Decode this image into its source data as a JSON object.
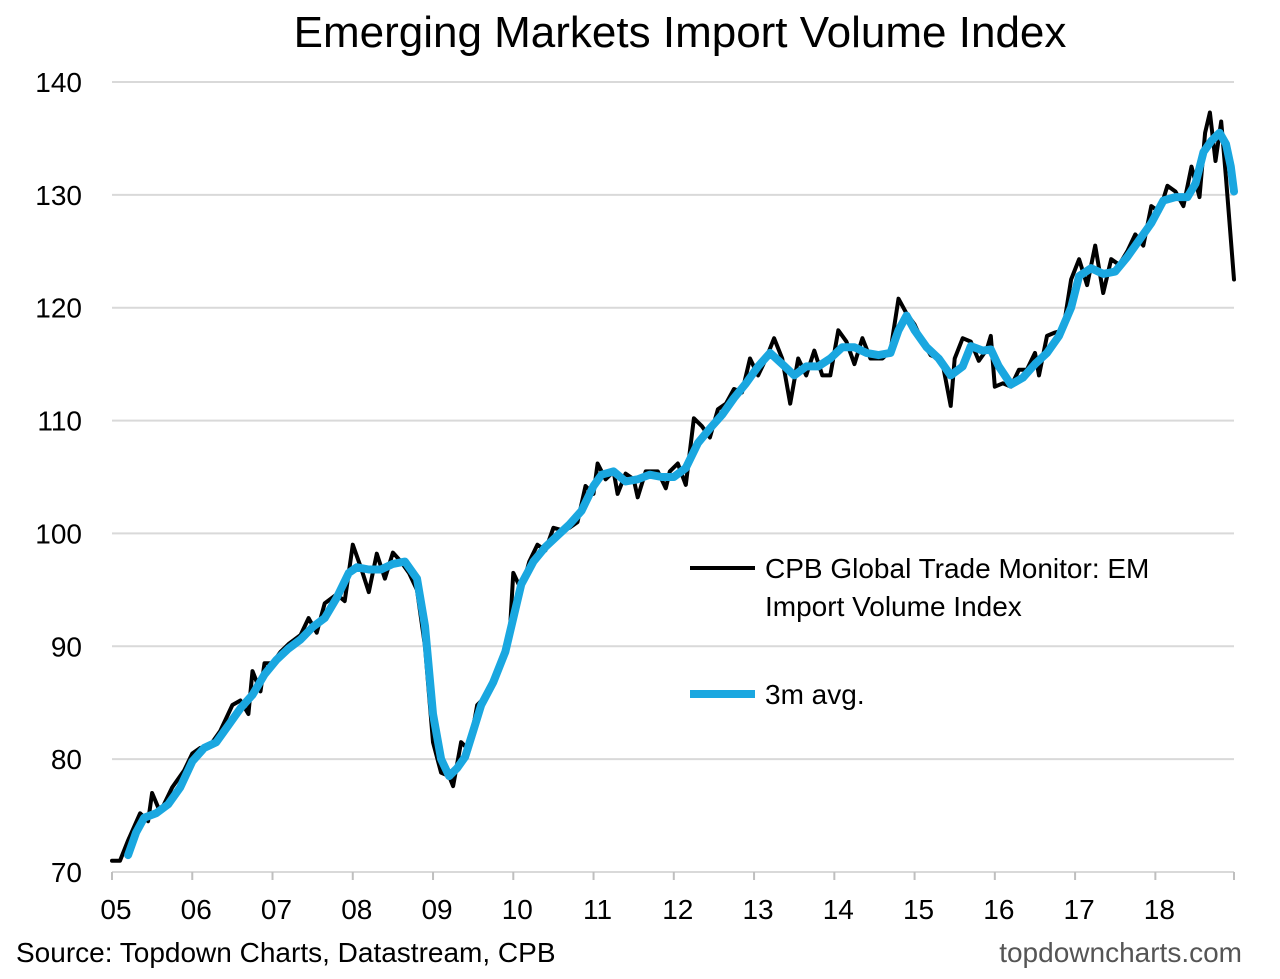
{
  "chart_data": {
    "type": "line",
    "title": "Emerging Markets Import Volume Index",
    "xlabel": "",
    "ylabel": "",
    "ylim": [
      70,
      140
    ],
    "yticks": [
      "70",
      "80",
      "90",
      "100",
      "110",
      "120",
      "130",
      "140"
    ],
    "xlim": [
      2005.0,
      2018.98
    ],
    "xticks": [
      "05",
      "06",
      "07",
      "08",
      "09",
      "10",
      "11",
      "12",
      "13",
      "14",
      "15",
      "16",
      "17",
      "18"
    ],
    "grid": "horizontal",
    "legend_placement": "right-middle",
    "source": "Source: Topdown Charts, Datastream, CPB",
    "watermark": "topdowncharts.com",
    "series": [
      {
        "name": "CPB Global Trade Monitor: EM Import Volume Index",
        "legend_lines": [
          "CPB Global Trade Monitor: EM",
          "Import Volume Index"
        ],
        "color": "#000000",
        "points": [
          [
            2005.0,
            71.0
          ],
          [
            2005.1,
            71.0
          ],
          [
            2005.2,
            72.8
          ],
          [
            2005.35,
            75.2
          ],
          [
            2005.45,
            74.5
          ],
          [
            2005.5,
            77.0
          ],
          [
            2005.6,
            75.3
          ],
          [
            2005.75,
            77.5
          ],
          [
            2005.9,
            79.0
          ],
          [
            2006.0,
            80.5
          ],
          [
            2006.1,
            81.0
          ],
          [
            2006.2,
            81.0
          ],
          [
            2006.35,
            82.5
          ],
          [
            2006.5,
            84.8
          ],
          [
            2006.6,
            85.2
          ],
          [
            2006.7,
            84.0
          ],
          [
            2006.75,
            87.8
          ],
          [
            2006.85,
            86.0
          ],
          [
            2006.9,
            88.5
          ],
          [
            2007.0,
            88.5
          ],
          [
            2007.1,
            89.5
          ],
          [
            2007.2,
            90.2
          ],
          [
            2007.35,
            91.0
          ],
          [
            2007.45,
            92.5
          ],
          [
            2007.55,
            91.2
          ],
          [
            2007.65,
            93.8
          ],
          [
            2007.8,
            94.6
          ],
          [
            2007.9,
            94.0
          ],
          [
            2008.0,
            99.0
          ],
          [
            2008.1,
            97.0
          ],
          [
            2008.2,
            94.8
          ],
          [
            2008.3,
            98.2
          ],
          [
            2008.4,
            96.0
          ],
          [
            2008.5,
            98.3
          ],
          [
            2008.6,
            97.5
          ],
          [
            2008.7,
            96.5
          ],
          [
            2008.8,
            95.0
          ],
          [
            2008.9,
            90.0
          ],
          [
            2009.0,
            81.5
          ],
          [
            2009.1,
            78.8
          ],
          [
            2009.2,
            78.5
          ],
          [
            2009.25,
            77.6
          ],
          [
            2009.35,
            81.5
          ],
          [
            2009.45,
            80.8
          ],
          [
            2009.55,
            84.8
          ],
          [
            2009.65,
            85.5
          ],
          [
            2009.75,
            86.8
          ],
          [
            2009.85,
            89.0
          ],
          [
            2009.95,
            90.5
          ],
          [
            2010.0,
            96.5
          ],
          [
            2010.1,
            95.0
          ],
          [
            2010.2,
            97.5
          ],
          [
            2010.3,
            99.0
          ],
          [
            2010.4,
            98.5
          ],
          [
            2010.5,
            100.5
          ],
          [
            2010.6,
            100.3
          ],
          [
            2010.7,
            100.5
          ],
          [
            2010.8,
            101.0
          ],
          [
            2010.9,
            104.2
          ],
          [
            2011.0,
            103.5
          ],
          [
            2011.05,
            106.2
          ],
          [
            2011.15,
            104.8
          ],
          [
            2011.25,
            105.5
          ],
          [
            2011.3,
            103.5
          ],
          [
            2011.4,
            105.3
          ],
          [
            2011.5,
            104.8
          ],
          [
            2011.55,
            103.2
          ],
          [
            2011.65,
            105.5
          ],
          [
            2011.8,
            105.5
          ],
          [
            2011.9,
            104.0
          ],
          [
            2011.95,
            105.5
          ],
          [
            2012.05,
            106.2
          ],
          [
            2012.15,
            104.3
          ],
          [
            2012.25,
            110.2
          ],
          [
            2012.35,
            109.5
          ],
          [
            2012.45,
            108.5
          ],
          [
            2012.55,
            111.0
          ],
          [
            2012.65,
            111.5
          ],
          [
            2012.75,
            112.8
          ],
          [
            2012.85,
            112.5
          ],
          [
            2012.95,
            115.5
          ],
          [
            2013.05,
            114.0
          ],
          [
            2013.15,
            115.5
          ],
          [
            2013.25,
            117.3
          ],
          [
            2013.35,
            115.5
          ],
          [
            2013.45,
            111.5
          ],
          [
            2013.55,
            115.5
          ],
          [
            2013.65,
            114.0
          ],
          [
            2013.75,
            116.2
          ],
          [
            2013.85,
            114.0
          ],
          [
            2013.95,
            114.0
          ],
          [
            2014.05,
            118.0
          ],
          [
            2014.15,
            117.0
          ],
          [
            2014.25,
            115.0
          ],
          [
            2014.35,
            117.3
          ],
          [
            2014.45,
            115.5
          ],
          [
            2014.6,
            115.5
          ],
          [
            2014.7,
            116.2
          ],
          [
            2014.8,
            120.8
          ],
          [
            2014.9,
            119.5
          ],
          [
            2015.0,
            118.5
          ],
          [
            2015.1,
            117.0
          ],
          [
            2015.2,
            115.8
          ],
          [
            2015.3,
            115.5
          ],
          [
            2015.35,
            115.0
          ],
          [
            2015.45,
            111.3
          ],
          [
            2015.5,
            115.5
          ],
          [
            2015.6,
            117.3
          ],
          [
            2015.7,
            117.0
          ],
          [
            2015.8,
            115.3
          ],
          [
            2015.9,
            116.3
          ],
          [
            2015.95,
            117.5
          ],
          [
            2016.0,
            113.0
          ],
          [
            2016.1,
            113.3
          ],
          [
            2016.2,
            113.0
          ],
          [
            2016.3,
            114.5
          ],
          [
            2016.4,
            114.5
          ],
          [
            2016.5,
            116.0
          ],
          [
            2016.55,
            114.0
          ],
          [
            2016.65,
            117.5
          ],
          [
            2016.75,
            117.8
          ],
          [
            2016.85,
            118.0
          ],
          [
            2016.95,
            122.5
          ],
          [
            2017.05,
            124.3
          ],
          [
            2017.15,
            122.0
          ],
          [
            2017.25,
            125.5
          ],
          [
            2017.35,
            121.3
          ],
          [
            2017.45,
            124.3
          ],
          [
            2017.55,
            123.8
          ],
          [
            2017.65,
            125.0
          ],
          [
            2017.75,
            126.5
          ],
          [
            2017.85,
            125.5
          ],
          [
            2017.95,
            129.0
          ],
          [
            2018.05,
            128.5
          ],
          [
            2018.15,
            130.8
          ],
          [
            2018.25,
            130.3
          ],
          [
            2018.35,
            129.0
          ],
          [
            2018.45,
            132.5
          ],
          [
            2018.55,
            129.8
          ],
          [
            2018.62,
            135.5
          ],
          [
            2018.68,
            137.3
          ],
          [
            2018.75,
            133.0
          ],
          [
            2018.82,
            136.5
          ],
          [
            2018.88,
            131.5
          ],
          [
            2018.93,
            127.0
          ],
          [
            2018.98,
            122.5
          ]
        ]
      },
      {
        "name": "3m avg.",
        "legend_lines": [
          "3m avg."
        ],
        "color": "#1aa7e0",
        "points": [
          [
            2005.2,
            71.5
          ],
          [
            2005.3,
            73.5
          ],
          [
            2005.4,
            74.8
          ],
          [
            2005.55,
            75.2
          ],
          [
            2005.7,
            76.0
          ],
          [
            2005.85,
            77.5
          ],
          [
            2006.0,
            79.8
          ],
          [
            2006.15,
            81.0
          ],
          [
            2006.3,
            81.5
          ],
          [
            2006.45,
            83.0
          ],
          [
            2006.6,
            84.5
          ],
          [
            2006.75,
            85.7
          ],
          [
            2006.9,
            87.5
          ],
          [
            2007.05,
            88.8
          ],
          [
            2007.2,
            89.8
          ],
          [
            2007.35,
            90.6
          ],
          [
            2007.5,
            91.7
          ],
          [
            2007.65,
            92.5
          ],
          [
            2007.8,
            94.3
          ],
          [
            2007.95,
            96.5
          ],
          [
            2008.05,
            97.0
          ],
          [
            2008.2,
            96.8
          ],
          [
            2008.35,
            96.8
          ],
          [
            2008.5,
            97.3
          ],
          [
            2008.65,
            97.5
          ],
          [
            2008.8,
            96.0
          ],
          [
            2008.9,
            91.8
          ],
          [
            2009.0,
            84.0
          ],
          [
            2009.1,
            80.0
          ],
          [
            2009.2,
            78.5
          ],
          [
            2009.3,
            79.2
          ],
          [
            2009.4,
            80.2
          ],
          [
            2009.5,
            82.5
          ],
          [
            2009.6,
            84.8
          ],
          [
            2009.75,
            86.8
          ],
          [
            2009.9,
            89.5
          ],
          [
            2010.0,
            92.5
          ],
          [
            2010.1,
            95.5
          ],
          [
            2010.25,
            97.5
          ],
          [
            2010.4,
            98.8
          ],
          [
            2010.55,
            99.8
          ],
          [
            2010.7,
            100.8
          ],
          [
            2010.85,
            102.0
          ],
          [
            2011.0,
            104.2
          ],
          [
            2011.1,
            105.2
          ],
          [
            2011.25,
            105.5
          ],
          [
            2011.4,
            104.6
          ],
          [
            2011.55,
            104.8
          ],
          [
            2011.7,
            105.2
          ],
          [
            2011.85,
            105.0
          ],
          [
            2012.0,
            105.0
          ],
          [
            2012.15,
            105.8
          ],
          [
            2012.3,
            108.0
          ],
          [
            2012.45,
            109.3
          ],
          [
            2012.6,
            110.5
          ],
          [
            2012.75,
            112.0
          ],
          [
            2012.9,
            113.3
          ],
          [
            2013.05,
            114.8
          ],
          [
            2013.2,
            116.0
          ],
          [
            2013.35,
            115.0
          ],
          [
            2013.5,
            114.0
          ],
          [
            2013.65,
            114.8
          ],
          [
            2013.8,
            114.8
          ],
          [
            2013.95,
            115.5
          ],
          [
            2014.1,
            116.5
          ],
          [
            2014.25,
            116.5
          ],
          [
            2014.4,
            116.0
          ],
          [
            2014.55,
            115.8
          ],
          [
            2014.7,
            116.0
          ],
          [
            2014.8,
            118.0
          ],
          [
            2014.9,
            119.3
          ],
          [
            2015.0,
            118.0
          ],
          [
            2015.15,
            116.5
          ],
          [
            2015.3,
            115.5
          ],
          [
            2015.45,
            114.0
          ],
          [
            2015.6,
            114.8
          ],
          [
            2015.7,
            116.6
          ],
          [
            2015.85,
            116.2
          ],
          [
            2015.95,
            116.3
          ],
          [
            2016.05,
            114.8
          ],
          [
            2016.2,
            113.2
          ],
          [
            2016.35,
            113.8
          ],
          [
            2016.5,
            115.0
          ],
          [
            2016.65,
            116.0
          ],
          [
            2016.8,
            117.5
          ],
          [
            2016.95,
            120.0
          ],
          [
            2017.05,
            122.8
          ],
          [
            2017.2,
            123.5
          ],
          [
            2017.35,
            123.0
          ],
          [
            2017.5,
            123.2
          ],
          [
            2017.65,
            124.5
          ],
          [
            2017.8,
            126.0
          ],
          [
            2017.95,
            127.5
          ],
          [
            2018.1,
            129.5
          ],
          [
            2018.25,
            129.8
          ],
          [
            2018.4,
            129.8
          ],
          [
            2018.5,
            131.0
          ],
          [
            2018.6,
            133.8
          ],
          [
            2018.7,
            134.8
          ],
          [
            2018.8,
            135.5
          ],
          [
            2018.88,
            134.5
          ],
          [
            2018.94,
            132.5
          ],
          [
            2018.98,
            130.3
          ]
        ]
      }
    ]
  }
}
